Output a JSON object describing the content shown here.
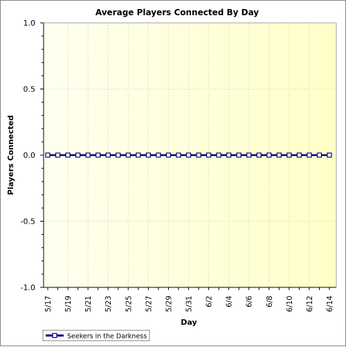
{
  "chart_data": {
    "type": "line",
    "title": "Average Players Connected By Day",
    "xlabel": "Day",
    "ylabel": "Players Connected",
    "ylim": [
      -1.0,
      1.0
    ],
    "yticks": [
      "-1.0",
      "-0.5",
      "0.0",
      "0.5",
      "1.0"
    ],
    "x": [
      "5/17",
      "5/18",
      "5/19",
      "5/20",
      "5/21",
      "5/22",
      "5/23",
      "5/24",
      "5/25",
      "5/26",
      "5/27",
      "5/28",
      "5/29",
      "5/30",
      "5/31",
      "6/1",
      "6/2",
      "6/3",
      "6/4",
      "6/5",
      "6/6",
      "6/7",
      "6/8",
      "6/9",
      "6/10",
      "6/11",
      "6/12",
      "6/13",
      "6/14"
    ],
    "xtick_labels": [
      "5/17",
      "5/19",
      "5/21",
      "5/23",
      "5/25",
      "5/27",
      "5/29",
      "5/31",
      "6/2",
      "6/4",
      "6/6",
      "6/8",
      "6/10",
      "6/12",
      "6/14"
    ],
    "series": [
      {
        "name": "Seekers in the Darkness",
        "values": [
          0,
          0,
          0,
          0,
          0,
          0,
          0,
          0,
          0,
          0,
          0,
          0,
          0,
          0,
          0,
          0,
          0,
          0,
          0,
          0,
          0,
          0,
          0,
          0,
          0,
          0,
          0,
          0,
          0
        ]
      }
    ],
    "grid": true,
    "legend_position": "bottom-left",
    "colors": {
      "series_line": "#000080",
      "marker_fill": "#ffffff",
      "plot_bg_left": "#fffff0",
      "plot_bg_right": "#ffffc8",
      "grid": "#c8c8b4"
    }
  }
}
